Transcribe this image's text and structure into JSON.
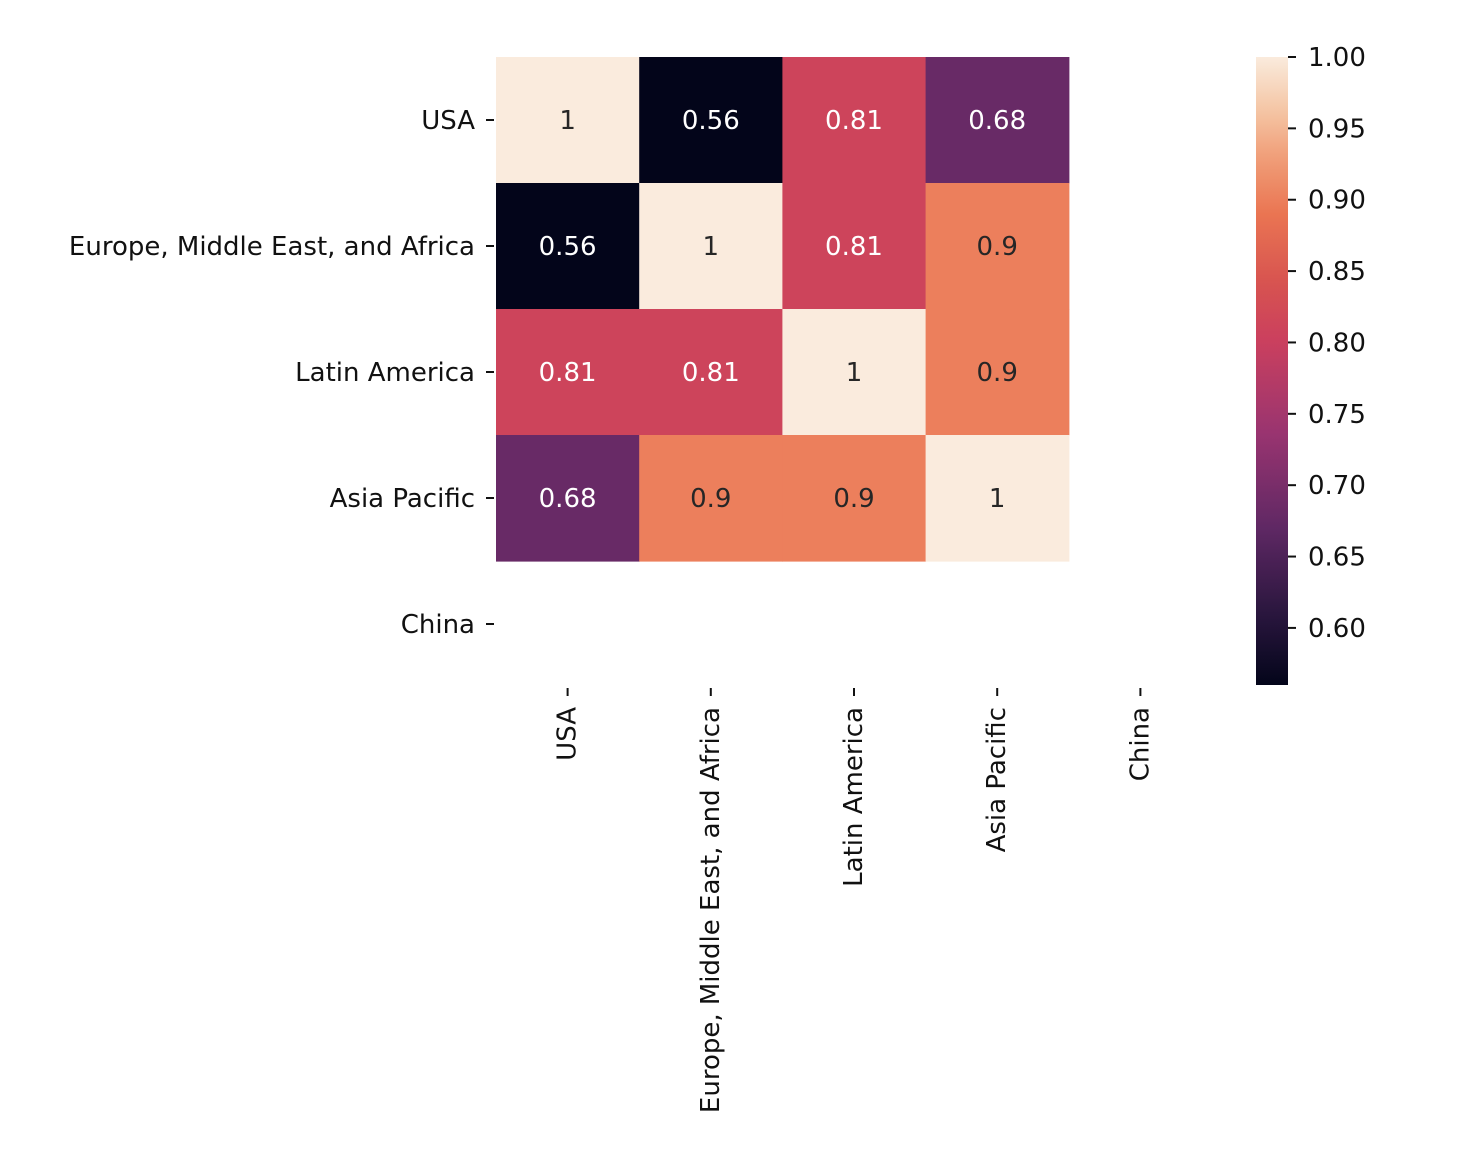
{
  "chart_data": {
    "type": "heatmap",
    "row_labels": [
      "USA",
      "Europe, Middle East, and Africa",
      "Latin America",
      "Asia Pacific",
      "China"
    ],
    "col_labels": [
      "USA",
      "Europe, Middle East, and Africa",
      "Latin America",
      "Asia Pacific",
      "China"
    ],
    "values": [
      [
        1,
        0.56,
        0.81,
        0.68,
        null
      ],
      [
        0.56,
        1,
        0.81,
        0.9,
        null
      ],
      [
        0.81,
        0.81,
        1,
        0.9,
        null
      ],
      [
        0.68,
        0.9,
        0.9,
        1,
        null
      ],
      [
        null,
        null,
        null,
        null,
        null
      ]
    ],
    "annotations": [
      [
        "1",
        "0.56",
        "0.81",
        "0.68",
        ""
      ],
      [
        "0.56",
        "1",
        "0.81",
        "0.9",
        ""
      ],
      [
        "0.81",
        "0.81",
        "1",
        "0.9",
        ""
      ],
      [
        "0.68",
        "0.9",
        "0.9",
        "1",
        ""
      ],
      [
        "",
        "",
        "",
        "",
        ""
      ]
    ],
    "colormap": "rocket",
    "colorbar": {
      "range": [
        0.56,
        1.0
      ],
      "ticks": [
        1.0,
        0.95,
        0.9,
        0.85,
        0.8,
        0.75,
        0.7,
        0.65,
        0.6
      ],
      "tick_labels": [
        "1.00",
        "0.95",
        "0.90",
        "0.85",
        "0.80",
        "0.75",
        "0.70",
        "0.65",
        "0.60"
      ],
      "placement": "right"
    }
  }
}
